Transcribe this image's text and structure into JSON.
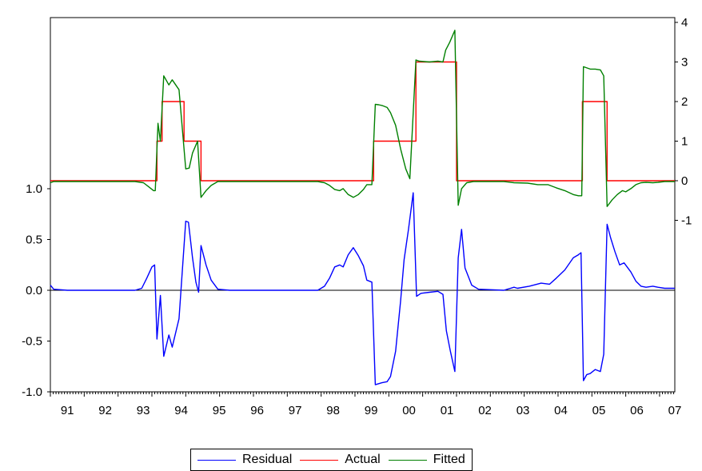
{
  "chart_data": {
    "type": "line",
    "x_tick_labels": [
      "91",
      "92",
      "93",
      "94",
      "95",
      "96",
      "97",
      "98",
      "99",
      "00",
      "01",
      "02",
      "03",
      "04",
      "05",
      "06",
      "07"
    ],
    "left_axis": {
      "ticks": [
        1.0,
        0.5,
        0.0,
        -0.5,
        -1.0
      ],
      "tick_labels": [
        "1.0",
        "0.5",
        "0.0",
        "-0.5",
        "-1.0"
      ],
      "range": [
        -1.0,
        1.0
      ]
    },
    "right_axis": {
      "ticks": [
        4,
        3,
        2,
        1,
        0,
        -1
      ],
      "tick_labels": [
        "4",
        "3",
        "2",
        "1",
        "0",
        "-1"
      ],
      "range": [
        -1,
        4
      ]
    },
    "grid": false,
    "zero_line": true,
    "legend_position": "bottom-center",
    "series": [
      {
        "name": "Residual",
        "axis": "left",
        "color": "#0000ff",
        "points": [
          [
            1991.0,
            0.05
          ],
          [
            1991.1,
            0.01
          ],
          [
            1991.5,
            0.0
          ],
          [
            1993.5,
            0.0
          ],
          [
            1993.7,
            0.02
          ],
          [
            1993.85,
            0.12
          ],
          [
            1994.0,
            0.23
          ],
          [
            1994.08,
            0.25
          ],
          [
            1994.15,
            -0.48
          ],
          [
            1994.25,
            -0.05
          ],
          [
            1994.35,
            -0.65
          ],
          [
            1994.5,
            -0.44
          ],
          [
            1994.6,
            -0.56
          ],
          [
            1994.8,
            -0.28
          ],
          [
            1995.0,
            0.68
          ],
          [
            1995.08,
            0.67
          ],
          [
            1995.2,
            0.32
          ],
          [
            1995.3,
            0.08
          ],
          [
            1995.38,
            -0.02
          ],
          [
            1995.45,
            0.44
          ],
          [
            1995.6,
            0.25
          ],
          [
            1995.75,
            0.1
          ],
          [
            1995.95,
            0.01
          ],
          [
            1996.3,
            0.0
          ],
          [
            1998.9,
            0.0
          ],
          [
            1999.1,
            0.04
          ],
          [
            1999.25,
            0.12
          ],
          [
            1999.4,
            0.23
          ],
          [
            1999.55,
            0.25
          ],
          [
            1999.65,
            0.23
          ],
          [
            1999.8,
            0.35
          ],
          [
            1999.95,
            0.42
          ],
          [
            2000.1,
            0.34
          ],
          [
            2000.25,
            0.24
          ],
          [
            2000.35,
            0.1
          ],
          [
            2000.5,
            0.08
          ],
          [
            2000.6,
            -0.93
          ],
          [
            2000.7,
            -0.92
          ],
          [
            2000.8,
            -0.91
          ],
          [
            2000.95,
            -0.9
          ],
          [
            2001.05,
            -0.85
          ],
          [
            2001.2,
            -0.6
          ],
          [
            2001.35,
            -0.1
          ],
          [
            2001.45,
            0.3
          ],
          [
            2001.58,
            0.6
          ],
          [
            2001.72,
            0.96
          ],
          [
            2001.82,
            -0.06
          ],
          [
            2001.95,
            -0.03
          ],
          [
            2002.2,
            -0.02
          ],
          [
            2002.45,
            -0.01
          ],
          [
            2002.6,
            -0.04
          ],
          [
            2002.7,
            -0.4
          ],
          [
            2002.82,
            -0.6
          ],
          [
            2002.95,
            -0.8
          ],
          [
            2003.05,
            0.32
          ],
          [
            2003.15,
            0.6
          ],
          [
            2003.25,
            0.22
          ],
          [
            2003.45,
            0.05
          ],
          [
            2003.65,
            0.01
          ],
          [
            2004.4,
            0.0
          ],
          [
            2004.7,
            0.03
          ],
          [
            2004.8,
            0.02
          ],
          [
            2005.15,
            0.04
          ],
          [
            2005.5,
            0.07
          ],
          [
            2005.75,
            0.06
          ],
          [
            2005.95,
            0.12
          ],
          [
            2006.2,
            0.2
          ],
          [
            2006.45,
            0.32
          ],
          [
            2006.6,
            0.35
          ],
          [
            2006.68,
            0.37
          ],
          [
            2006.75,
            -0.89
          ],
          [
            2006.85,
            -0.83
          ],
          [
            2006.95,
            -0.82
          ],
          [
            2007.1,
            -0.78
          ],
          [
            2007.25,
            -0.8
          ],
          [
            2007.35,
            -0.63
          ],
          [
            2007.45,
            0.65
          ],
          [
            2007.55,
            0.52
          ],
          [
            2007.68,
            0.38
          ],
          [
            2007.82,
            0.25
          ],
          [
            2007.95,
            0.27
          ],
          [
            2008.15,
            0.18
          ],
          [
            2008.3,
            0.09
          ],
          [
            2008.45,
            0.04
          ],
          [
            2008.6,
            0.03
          ],
          [
            2008.8,
            0.04
          ],
          [
            2008.95,
            0.03
          ],
          [
            2009.15,
            0.02
          ],
          [
            2009.3,
            0.02
          ],
          [
            2009.45,
            0.02
          ]
        ]
      },
      {
        "name": "Actual",
        "axis": "right",
        "color": "#ff0000",
        "points": [
          [
            1991.0,
            0
          ],
          [
            1994.15,
            0
          ],
          [
            1994.15,
            1
          ],
          [
            1994.3,
            1
          ],
          [
            1994.3,
            2
          ],
          [
            1994.95,
            2
          ],
          [
            1994.95,
            1
          ],
          [
            1995.45,
            1
          ],
          [
            1995.45,
            0
          ],
          [
            2000.55,
            0
          ],
          [
            2000.55,
            1
          ],
          [
            2001.8,
            1
          ],
          [
            2001.8,
            3
          ],
          [
            2003.0,
            3
          ],
          [
            2003.0,
            0
          ],
          [
            2006.72,
            0
          ],
          [
            2006.72,
            2
          ],
          [
            2007.45,
            2
          ],
          [
            2007.45,
            0
          ],
          [
            2009.45,
            0
          ]
        ]
      },
      {
        "name": "Fitted",
        "axis": "right",
        "color": "#008000",
        "points": [
          [
            1991.0,
            -0.05
          ],
          [
            1991.1,
            -0.02
          ],
          [
            1991.5,
            -0.02
          ],
          [
            1993.5,
            -0.02
          ],
          [
            1993.75,
            -0.05
          ],
          [
            1993.9,
            -0.15
          ],
          [
            1994.05,
            -0.25
          ],
          [
            1994.1,
            -0.25
          ],
          [
            1994.18,
            1.45
          ],
          [
            1994.25,
            1.0
          ],
          [
            1994.35,
            2.65
          ],
          [
            1994.5,
            2.42
          ],
          [
            1994.6,
            2.55
          ],
          [
            1994.8,
            2.3
          ],
          [
            1995.0,
            0.3
          ],
          [
            1995.1,
            0.32
          ],
          [
            1995.2,
            0.7
          ],
          [
            1995.35,
            1.0
          ],
          [
            1995.45,
            -0.42
          ],
          [
            1995.6,
            -0.25
          ],
          [
            1995.75,
            -0.12
          ],
          [
            1995.95,
            -0.02
          ],
          [
            1996.3,
            -0.02
          ],
          [
            1998.9,
            -0.02
          ],
          [
            1999.1,
            -0.05
          ],
          [
            1999.25,
            -0.12
          ],
          [
            1999.4,
            -0.22
          ],
          [
            1999.55,
            -0.25
          ],
          [
            1999.65,
            -0.2
          ],
          [
            1999.8,
            -0.35
          ],
          [
            1999.95,
            -0.42
          ],
          [
            2000.1,
            -0.35
          ],
          [
            2000.25,
            -0.22
          ],
          [
            2000.35,
            -0.1
          ],
          [
            2000.5,
            -0.1
          ],
          [
            2000.6,
            1.93
          ],
          [
            2000.7,
            1.92
          ],
          [
            2000.8,
            1.9
          ],
          [
            2000.95,
            1.85
          ],
          [
            2001.05,
            1.72
          ],
          [
            2001.2,
            1.4
          ],
          [
            2001.35,
            0.8
          ],
          [
            2001.5,
            0.3
          ],
          [
            2001.62,
            0.05
          ],
          [
            2001.8,
            3.05
          ],
          [
            2001.9,
            3.02
          ],
          [
            2002.2,
            3.0
          ],
          [
            2002.45,
            3.02
          ],
          [
            2002.6,
            3.0
          ],
          [
            2002.68,
            3.3
          ],
          [
            2002.8,
            3.5
          ],
          [
            2002.95,
            3.8
          ],
          [
            2003.05,
            -0.62
          ],
          [
            2003.15,
            -0.2
          ],
          [
            2003.3,
            -0.05
          ],
          [
            2003.5,
            -0.02
          ],
          [
            2004.4,
            -0.02
          ],
          [
            2004.7,
            -0.05
          ],
          [
            2005.1,
            -0.06
          ],
          [
            2005.4,
            -0.1
          ],
          [
            2005.7,
            -0.1
          ],
          [
            2005.95,
            -0.18
          ],
          [
            2006.2,
            -0.25
          ],
          [
            2006.45,
            -0.35
          ],
          [
            2006.6,
            -0.38
          ],
          [
            2006.7,
            -0.38
          ],
          [
            2006.75,
            2.88
          ],
          [
            2006.85,
            2.85
          ],
          [
            2006.95,
            2.82
          ],
          [
            2007.1,
            2.82
          ],
          [
            2007.25,
            2.8
          ],
          [
            2007.35,
            2.65
          ],
          [
            2007.45,
            -0.65
          ],
          [
            2007.6,
            -0.48
          ],
          [
            2007.75,
            -0.35
          ],
          [
            2007.9,
            -0.25
          ],
          [
            2008.0,
            -0.28
          ],
          [
            2008.15,
            -0.2
          ],
          [
            2008.3,
            -0.1
          ],
          [
            2008.45,
            -0.05
          ],
          [
            2008.6,
            -0.04
          ],
          [
            2008.8,
            -0.05
          ],
          [
            2008.95,
            -0.04
          ],
          [
            2009.15,
            -0.02
          ],
          [
            2009.3,
            -0.02
          ],
          [
            2009.45,
            -0.02
          ]
        ]
      }
    ]
  },
  "legend": {
    "items": [
      {
        "label": "Residual",
        "color": "#0000ff"
      },
      {
        "label": "Actual",
        "color": "#ff0000"
      },
      {
        "label": "Fitted",
        "color": "#008000"
      }
    ]
  }
}
